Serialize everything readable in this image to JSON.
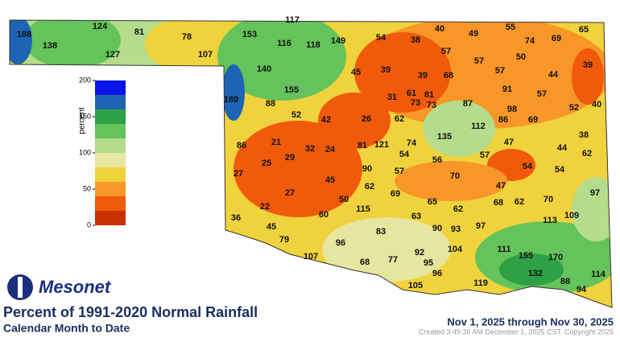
{
  "header": {
    "logo": "Mesonet",
    "title": "Percent of 1991-2020 Normal Rainfall",
    "subtitle": "Calendar Month to Date",
    "period": "Nov 1, 2025 through Nov 30, 2025",
    "credit": "Created 3:49:36 AM December 1, 2025 CST. Copyright 2025"
  },
  "colorbar": {
    "label": "percent",
    "ticks": [
      0,
      50,
      100,
      150,
      200
    ],
    "colors": [
      "#c83200",
      "#f05a0a",
      "#f89628",
      "#f0d23c",
      "#e6e6a0",
      "#b4dc8c",
      "#64c35a",
      "#30a046",
      "#1e64b4",
      "#0a14e6"
    ]
  },
  "stations": [
    117,
    188,
    138,
    124,
    81,
    78,
    127,
    107,
    153,
    116,
    118,
    149,
    54,
    38,
    40,
    49,
    55,
    74,
    69,
    65,
    57,
    57,
    50,
    39,
    140,
    45,
    39,
    39,
    68,
    57,
    44,
    189,
    155,
    88,
    31,
    61,
    81,
    91,
    57,
    73,
    73,
    87,
    98,
    52,
    40,
    52,
    42,
    26,
    62,
    112,
    86,
    69,
    38,
    86,
    21,
    32,
    24,
    81,
    121,
    74,
    135,
    47,
    44,
    62,
    54,
    56,
    57,
    25,
    29,
    54,
    54,
    27,
    90,
    57,
    70,
    45,
    62,
    47,
    27,
    69,
    97,
    50,
    65,
    68,
    62,
    70,
    22,
    115,
    62,
    36,
    60,
    63,
    113,
    109,
    45,
    97,
    90,
    93,
    83,
    79,
    96,
    104,
    111,
    107,
    92,
    155,
    170,
    68,
    77,
    95,
    132,
    114,
    96,
    119,
    88,
    105,
    94
  ]
}
